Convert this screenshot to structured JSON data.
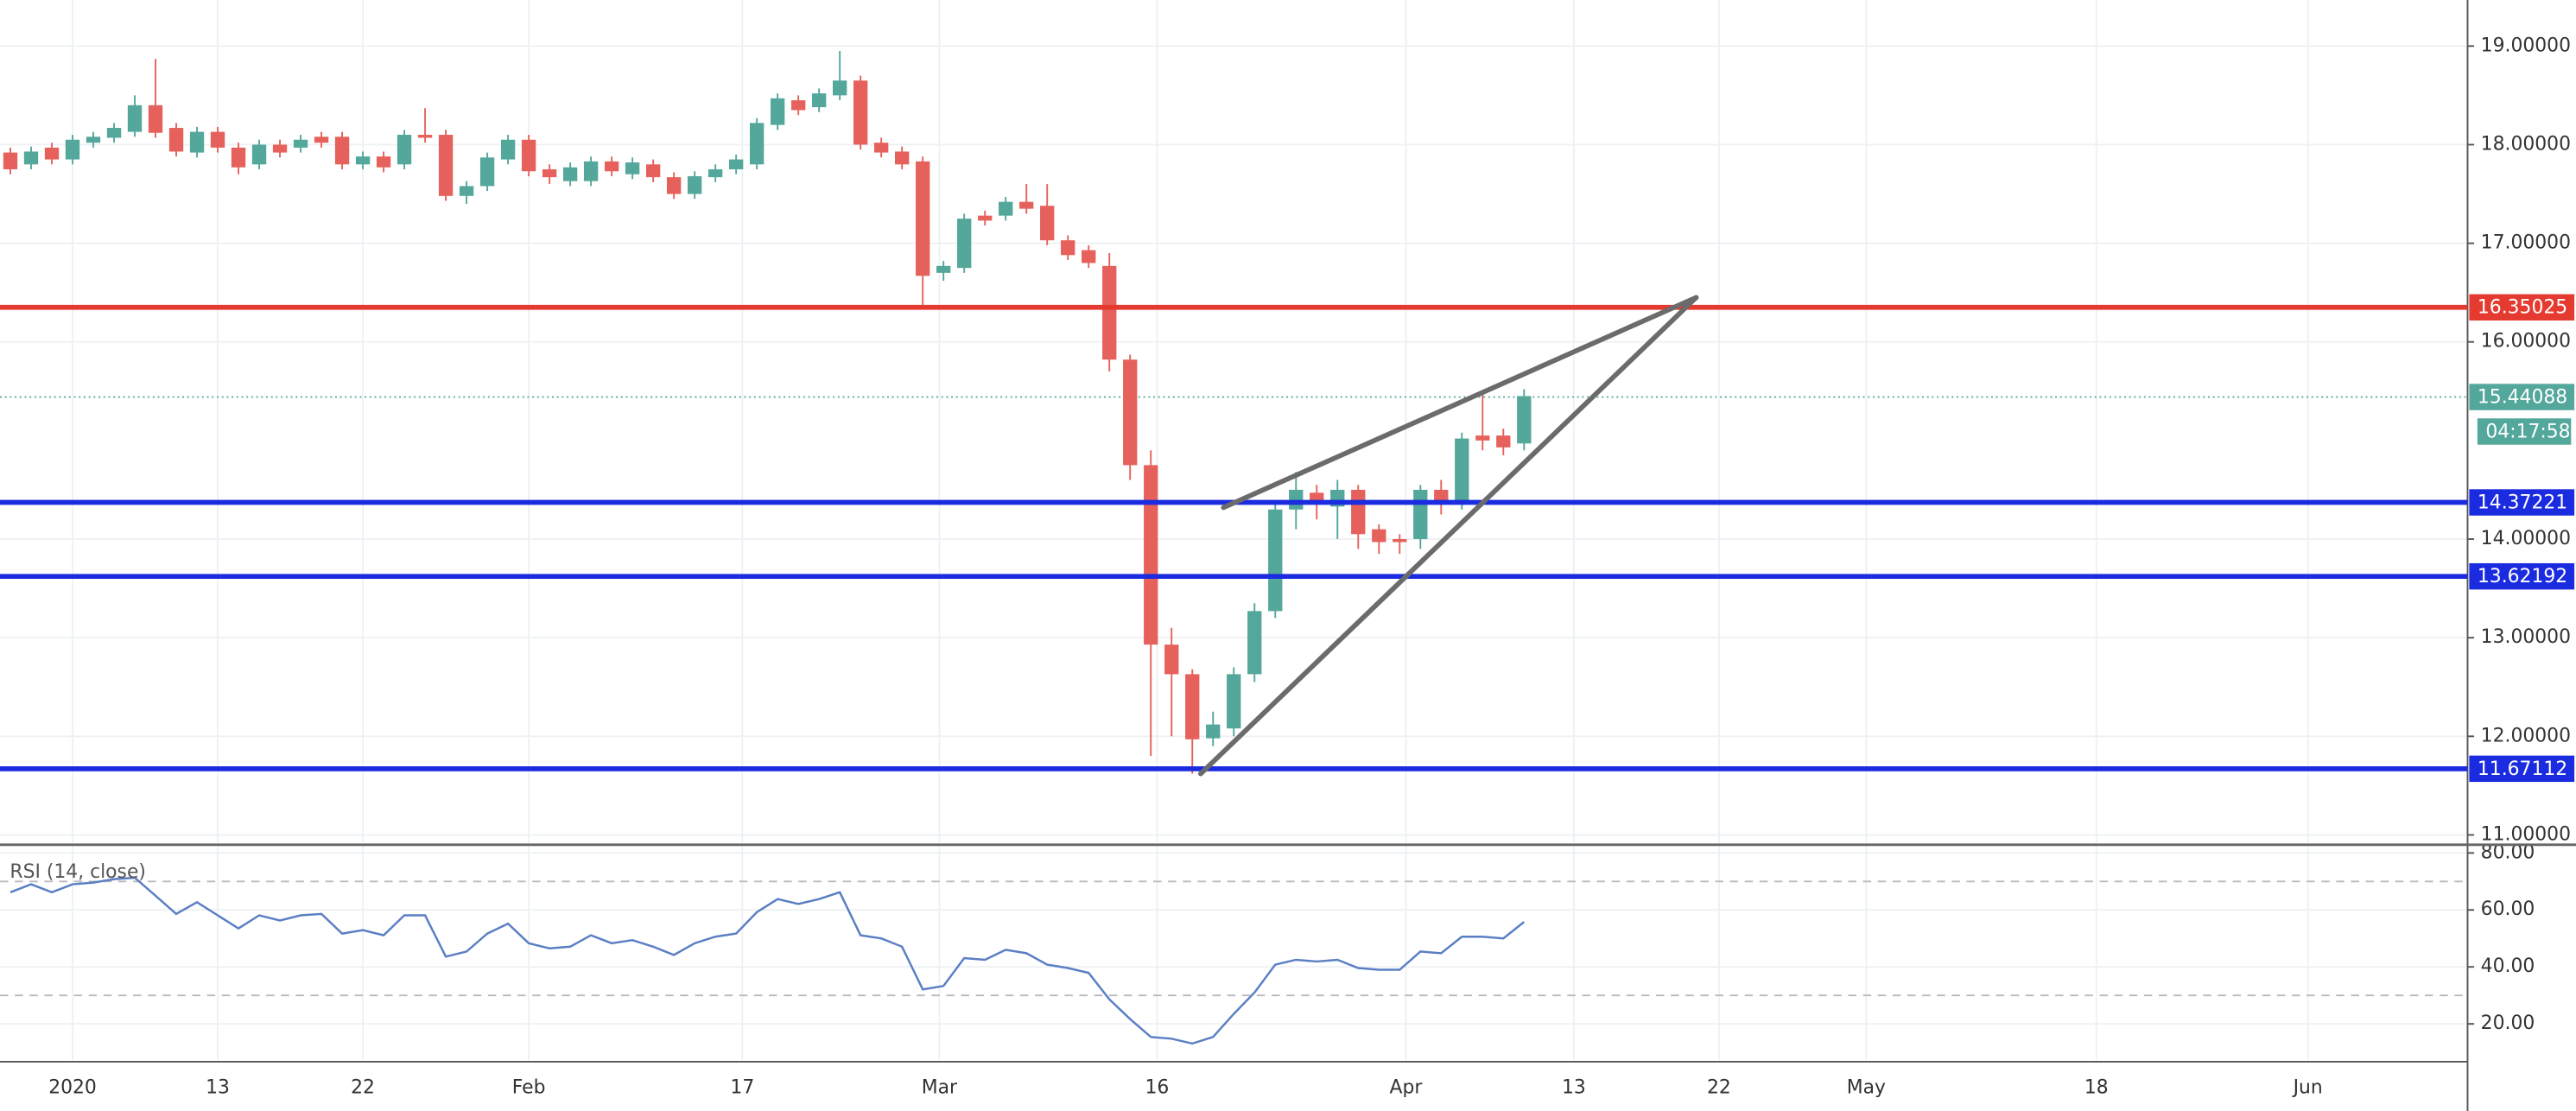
{
  "chart_data": {
    "type": "candlestick",
    "x": [
      0,
      1,
      2,
      3,
      4,
      5,
      6,
      7,
      8,
      9,
      10,
      11,
      12,
      13,
      14,
      15,
      16,
      17,
      18,
      19,
      20,
      21,
      22,
      23,
      24,
      25,
      26,
      27,
      28,
      29,
      30,
      31,
      32,
      33,
      34,
      35,
      36,
      37,
      38,
      39,
      40,
      41,
      42,
      43,
      44,
      45,
      46,
      47,
      48,
      49,
      50,
      51,
      52,
      53,
      54,
      55,
      56,
      57,
      58,
      59,
      60,
      61,
      62,
      63,
      64,
      65,
      66,
      67,
      68,
      69,
      70,
      71,
      72,
      73
    ],
    "open": [
      17.92,
      17.8,
      17.97,
      17.85,
      18.02,
      18.07,
      18.13,
      18.4,
      18.17,
      17.92,
      18.13,
      17.97,
      17.8,
      18.0,
      17.97,
      18.08,
      18.08,
      17.8,
      17.88,
      17.8,
      18.1,
      18.1,
      17.48,
      17.58,
      17.85,
      18.05,
      17.75,
      17.63,
      17.63,
      17.83,
      17.7,
      17.8,
      17.67,
      17.5,
      17.67,
      17.75,
      17.8,
      18.2,
      18.45,
      18.38,
      18.5,
      18.65,
      18.02,
      17.93,
      17.83,
      16.7,
      16.75,
      17.28,
      17.28,
      17.42,
      17.38,
      17.03,
      16.93,
      16.77,
      15.82,
      14.75,
      12.93,
      12.63,
      11.98,
      12.08,
      12.63,
      13.27,
      14.3,
      14.47,
      14.33,
      14.5,
      14.1,
      14.0,
      14.0,
      14.5,
      14.38,
      15.05,
      15.05,
      14.97
    ],
    "high": [
      17.97,
      17.98,
      18.02,
      18.1,
      18.13,
      18.22,
      18.5,
      18.87,
      18.22,
      18.18,
      18.18,
      18.02,
      18.05,
      18.05,
      18.1,
      18.13,
      18.13,
      17.93,
      17.93,
      18.15,
      18.37,
      18.15,
      17.63,
      17.92,
      18.1,
      18.1,
      17.8,
      17.82,
      17.88,
      17.88,
      17.87,
      17.85,
      17.72,
      17.73,
      17.8,
      17.9,
      18.27,
      18.52,
      18.5,
      18.57,
      18.95,
      18.7,
      18.07,
      17.98,
      17.88,
      16.82,
      17.3,
      17.33,
      17.47,
      17.6,
      17.6,
      17.08,
      16.98,
      16.9,
      15.87,
      14.9,
      13.1,
      12.68,
      12.25,
      12.7,
      13.35,
      14.35,
      14.68,
      14.55,
      14.6,
      14.55,
      14.15,
      14.05,
      14.55,
      14.6,
      15.08,
      15.48,
      15.12,
      15.52
    ],
    "low": [
      17.7,
      17.75,
      17.8,
      17.8,
      17.97,
      18.02,
      18.08,
      18.07,
      17.88,
      17.87,
      17.92,
      17.7,
      17.75,
      17.87,
      17.92,
      17.97,
      17.75,
      17.75,
      17.72,
      17.75,
      18.02,
      17.43,
      17.4,
      17.53,
      17.8,
      17.68,
      17.6,
      17.58,
      17.58,
      17.68,
      17.65,
      17.62,
      17.45,
      17.45,
      17.62,
      17.7,
      17.75,
      18.15,
      18.3,
      18.33,
      18.45,
      17.95,
      17.87,
      17.75,
      16.33,
      16.62,
      16.7,
      17.18,
      17.23,
      17.3,
      16.98,
      16.83,
      16.75,
      15.7,
      14.6,
      11.8,
      12.0,
      11.62,
      11.9,
      12.0,
      12.55,
      13.2,
      14.1,
      14.2,
      14.0,
      13.9,
      13.85,
      13.85,
      13.9,
      14.25,
      14.3,
      14.9,
      14.85,
      14.9
    ],
    "close": [
      17.75,
      17.93,
      17.85,
      18.05,
      18.08,
      18.17,
      18.4,
      18.12,
      17.93,
      18.13,
      17.97,
      17.77,
      18.0,
      17.92,
      18.05,
      18.02,
      17.8,
      17.88,
      17.77,
      18.1,
      18.07,
      17.48,
      17.58,
      17.87,
      18.05,
      17.73,
      17.67,
      17.77,
      17.83,
      17.73,
      17.82,
      17.67,
      17.5,
      17.68,
      17.75,
      17.85,
      18.22,
      18.47,
      18.35,
      18.52,
      18.65,
      18.0,
      17.92,
      17.8,
      16.67,
      16.77,
      17.25,
      17.23,
      17.42,
      17.35,
      17.03,
      16.88,
      16.8,
      15.82,
      14.75,
      12.93,
      12.63,
      11.97,
      12.12,
      12.63,
      13.27,
      14.3,
      14.5,
      14.38,
      14.5,
      14.05,
      13.97,
      13.97,
      14.5,
      14.38,
      15.02,
      15.0,
      14.93,
      15.45
    ],
    "up_color": "#53a79b",
    "down_color": "#e6615b",
    "xlim": [
      -0.5,
      118.5
    ],
    "xticks": [
      {
        "value": 3,
        "label": "2020"
      },
      {
        "value": 10,
        "label": "13"
      },
      {
        "value": 17,
        "label": "22"
      },
      {
        "value": 25,
        "label": "Feb"
      },
      {
        "value": 35.3,
        "label": "17"
      },
      {
        "value": 44.8,
        "label": "Mar"
      },
      {
        "value": 55.3,
        "label": "16"
      },
      {
        "value": 67.3,
        "label": "Apr"
      },
      {
        "value": 75.4,
        "label": "13"
      },
      {
        "value": 82.4,
        "label": "22"
      },
      {
        "value": 89.5,
        "label": "May"
      },
      {
        "value": 100.6,
        "label": "18"
      },
      {
        "value": 110.8,
        "label": "Jun"
      }
    ],
    "ylim": [
      10.917,
      19.467
    ],
    "yticks": [
      {
        "value": 19,
        "label": "19.00000"
      },
      {
        "value": 18,
        "label": "18.00000"
      },
      {
        "value": 17,
        "label": "17.00000"
      },
      {
        "value": 16,
        "label": "16.00000"
      },
      {
        "value": 14,
        "label": "14.00000"
      },
      {
        "value": 13,
        "label": "13.00000"
      },
      {
        "value": 12,
        "label": "12.00000"
      },
      {
        "value": 11,
        "label": "11.00000"
      }
    ],
    "grid": true,
    "horizontal_lines": [
      {
        "value": 16.35025,
        "color": "#e53a2f"
      },
      {
        "value": 14.37221,
        "color": "#1a2be0"
      },
      {
        "value": 13.62192,
        "color": "#1a2be0"
      },
      {
        "value": 11.67112,
        "color": "#1a2be0"
      }
    ],
    "last_price": {
      "value": 15.44088,
      "countdown": "04:17:58",
      "color": "#53a79b"
    },
    "trendlines": [
      {
        "x": [
          58.5,
          81.3
        ],
        "y": [
          14.32,
          16.45
        ]
      },
      {
        "x": [
          57.4,
          81.3
        ],
        "y": [
          11.62,
          16.45
        ]
      }
    ],
    "trendline_color": "#6b6b6b",
    "rsi": {
      "title": "RSI (14, close)",
      "color": "#5b7fc4",
      "values": [
        66.2,
        69.0,
        66.2,
        69.0,
        69.6,
        70.8,
        71.3,
        65.0,
        58.6,
        62.7,
        58.1,
        53.5,
        58.1,
        56.3,
        58.1,
        58.6,
        51.7,
        52.9,
        51.1,
        58.1,
        58.1,
        43.6,
        45.4,
        51.7,
        55.2,
        48.3,
        46.5,
        47.1,
        51.1,
        48.3,
        49.4,
        47.1,
        44.2,
        48.3,
        50.6,
        51.7,
        59.2,
        63.8,
        62.1,
        63.8,
        66.2,
        51.1,
        50.0,
        47.1,
        32.1,
        33.3,
        43.1,
        42.5,
        46.0,
        44.8,
        40.8,
        39.6,
        37.9,
        28.6,
        21.7,
        15.4,
        14.8,
        13.1,
        15.4,
        23.5,
        31.0,
        40.8,
        42.5,
        41.9,
        42.5,
        39.6,
        39.0,
        39.0,
        45.4,
        44.8,
        50.6,
        50.6,
        50.0,
        55.8
      ],
      "ylim": [
        7.3,
        82.3
      ],
      "yticks": [
        {
          "value": 80,
          "label": "80.00"
        },
        {
          "value": 60,
          "label": "60.00"
        },
        {
          "value": 40,
          "label": "40.00"
        },
        {
          "value": 20,
          "label": "20.00"
        }
      ],
      "levels": [
        30,
        70
      ]
    }
  }
}
